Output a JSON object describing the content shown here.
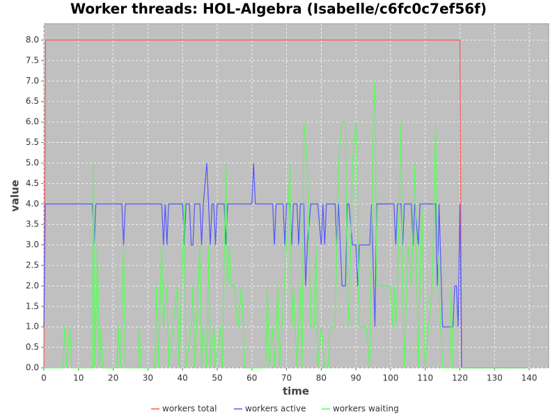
{
  "chart_data": {
    "type": "line",
    "title": "Worker threads: HOL-Algebra (Isabelle/c6fc0c7ef56f)",
    "xlabel": "time",
    "ylabel": "value",
    "xlim": [
      0,
      145.6
    ],
    "ylim": [
      0,
      8.4
    ],
    "xticks": [
      0,
      10,
      20,
      30,
      40,
      50,
      60,
      70,
      80,
      90,
      100,
      110,
      120,
      130,
      140
    ],
    "yticks": [
      {
        "value": 0,
        "label": "0.0"
      },
      {
        "value": 0.5,
        "label": "0.5"
      },
      {
        "value": 1,
        "label": "1.0"
      },
      {
        "value": 1.5,
        "label": "1.5"
      },
      {
        "value": 2,
        "label": "2.0"
      },
      {
        "value": 2.5,
        "label": "2.5"
      },
      {
        "value": 3,
        "label": "3.0"
      },
      {
        "value": 3.5,
        "label": "3.5"
      },
      {
        "value": 4,
        "label": "4.0"
      },
      {
        "value": 4.5,
        "label": "4.5"
      },
      {
        "value": 5,
        "label": "5.0"
      },
      {
        "value": 5.5,
        "label": "5.5"
      },
      {
        "value": 6,
        "label": "6.0"
      },
      {
        "value": 6.5,
        "label": "6.5"
      },
      {
        "value": 7,
        "label": "7.0"
      },
      {
        "value": 7.5,
        "label": "7.5"
      },
      {
        "value": 8,
        "label": "8.0"
      }
    ],
    "grid": true,
    "legend": "bottom",
    "series": [
      {
        "name": "workers total",
        "color": "#ff5555",
        "x": [
          0,
          0.5,
          120,
          120.5,
          139
        ],
        "values": [
          0,
          8,
          8,
          0,
          0
        ]
      },
      {
        "name": "workers active",
        "color": "#5555ff",
        "x": [
          0,
          0.4,
          14,
          14.5,
          15,
          22.5,
          23,
          23.5,
          34,
          34.5,
          35,
          35.5,
          36,
          40,
          40.5,
          41,
          42,
          42.5,
          43,
          43.5,
          45,
          45.5,
          46,
          47,
          48,
          48.5,
          49,
          49.5,
          50,
          52,
          52.5,
          53,
          60,
          60.5,
          61,
          66,
          66.5,
          67,
          69,
          69.5,
          70,
          71,
          71.5,
          72,
          73,
          73.5,
          74,
          75,
          75.5,
          76,
          77,
          79,
          80,
          80.5,
          81,
          81.5,
          84,
          84.5,
          85,
          86,
          87,
          87.5,
          88,
          89,
          90,
          90.5,
          91,
          94,
          94.5,
          95.5,
          96,
          101,
          101.5,
          102,
          103,
          103.5,
          104,
          106,
          106.5,
          107,
          108,
          108.5,
          113,
          113.5,
          114,
          115,
          118,
          118.5,
          119,
          119.5,
          120,
          120.5,
          139
        ],
        "values": [
          1,
          4,
          4,
          3,
          4,
          4,
          3,
          4,
          4,
          3,
          4,
          3,
          4,
          4,
          3,
          4,
          4,
          3,
          3,
          4,
          4,
          3,
          4,
          5,
          3,
          4,
          4,
          3,
          4,
          4,
          3,
          4,
          4,
          5,
          4,
          4,
          3,
          4,
          4,
          3,
          4,
          4,
          3,
          4,
          4,
          3,
          4,
          4,
          2,
          3,
          4,
          4,
          3,
          4,
          3,
          4,
          4,
          3,
          4,
          2,
          2,
          4,
          4,
          3,
          3,
          2,
          3,
          3,
          4,
          1,
          4,
          4,
          3,
          4,
          4,
          3,
          4,
          4,
          3,
          4,
          3,
          4,
          4,
          2,
          4,
          1,
          1,
          2,
          2,
          1,
          4,
          0,
          0
        ]
      },
      {
        "name": "workers waiting",
        "color": "#55ff55",
        "x": [
          0,
          5.5,
          6,
          6.5,
          7.5,
          8,
          14,
          14.3,
          14.7,
          15.5,
          16,
          16.5,
          17,
          21,
          21.5,
          22,
          23,
          23.5,
          27,
          27.5,
          28,
          32,
          32.5,
          33,
          34,
          34.5,
          35.5,
          36,
          38.5,
          39,
          40.5,
          41,
          42.5,
          43,
          43.5,
          45,
          45.5,
          46,
          47,
          47.5,
          48,
          49,
          49.5,
          51,
          51.5,
          52.5,
          53,
          53.5,
          54,
          55,
          56,
          57,
          58,
          64,
          64.5,
          65,
          66,
          66.5,
          67.5,
          68,
          70,
          71,
          71.5,
          72,
          73,
          74,
          74.5,
          75,
          76,
          77,
          78,
          78.5,
          79,
          80,
          81,
          82,
          82.5,
          84,
          85,
          86,
          87,
          87.5,
          88,
          89,
          90,
          91,
          93,
          94,
          95,
          95.5,
          96,
          100,
          100.5,
          101,
          101.5,
          102,
          103,
          103.5,
          104,
          105,
          106,
          107,
          108,
          109,
          110,
          112,
          113,
          113.5,
          115,
          117,
          117.5,
          118,
          139
        ],
        "values": [
          0,
          0,
          1,
          0,
          1,
          0,
          0,
          5,
          0,
          3,
          0,
          1,
          0,
          0,
          1,
          0,
          3,
          0,
          0,
          1,
          0,
          0,
          2,
          0,
          3,
          1,
          2,
          0,
          2,
          0,
          4,
          0,
          1,
          2,
          0,
          3,
          0,
          1,
          0,
          3,
          0,
          1,
          0,
          1,
          0,
          5,
          2,
          3,
          2,
          2,
          1,
          2,
          0,
          0,
          2,
          0,
          1,
          0,
          2,
          0,
          3,
          5,
          1,
          2,
          0,
          2,
          0,
          6,
          5,
          1,
          1,
          3,
          0,
          1,
          0,
          0,
          1,
          1,
          5,
          6,
          6,
          2,
          1,
          5,
          6,
          1,
          1,
          0,
          6,
          7,
          2,
          2,
          1,
          2,
          1,
          2,
          6,
          2,
          0,
          3,
          2,
          5,
          0,
          4,
          0,
          2,
          6,
          3,
          0,
          0,
          2,
          0,
          0
        ]
      }
    ]
  }
}
